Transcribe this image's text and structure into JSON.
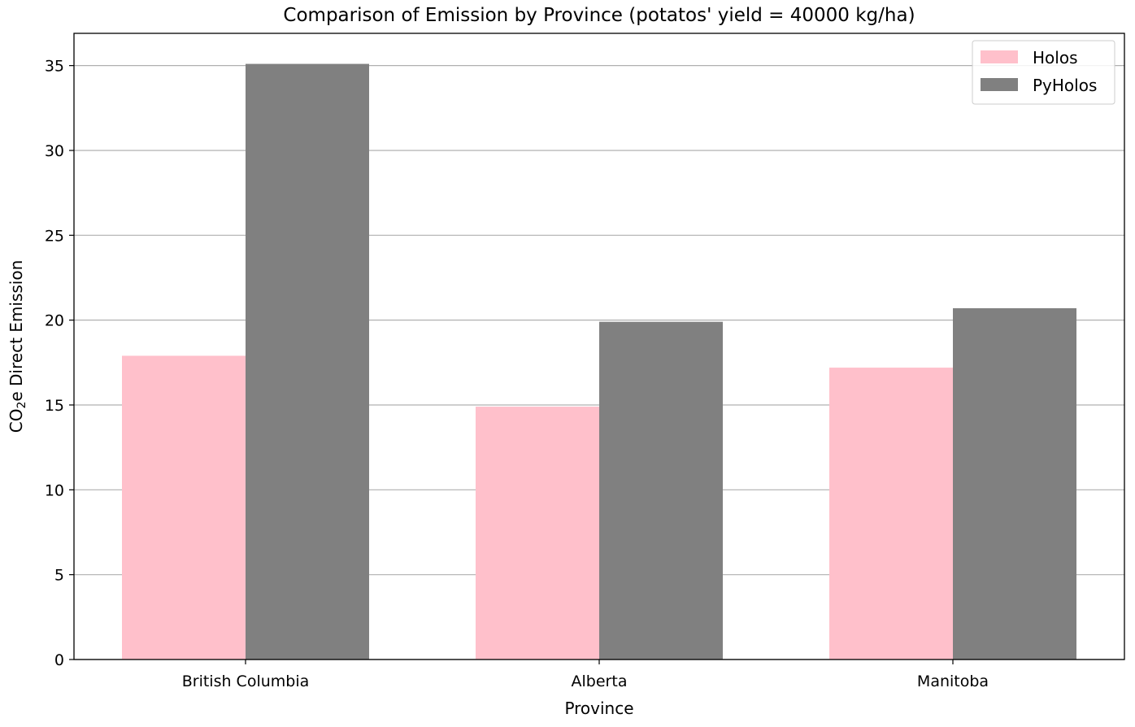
{
  "chart_data": {
    "type": "bar",
    "title": "Comparison of Emission by Province (potatos' yield = 40000 kg/ha)",
    "xlabel": "Province",
    "ylabel": {
      "prefix": "CO",
      "subscript": "2",
      "suffix": "e Direct Emission"
    },
    "categories": [
      "British Columbia",
      "Alberta",
      "Manitoba"
    ],
    "series": [
      {
        "name": "Holos",
        "color": "#FFC0CB",
        "values": [
          17.9,
          14.9,
          17.2
        ]
      },
      {
        "name": "PyHolos",
        "color": "#808080",
        "values": [
          35.1,
          19.9,
          20.7
        ]
      }
    ],
    "ylim": [
      0,
      36.9
    ],
    "yticks": [
      0,
      5,
      10,
      15,
      20,
      25,
      30,
      35
    ],
    "grid": "y",
    "legend_position": "top-right"
  }
}
